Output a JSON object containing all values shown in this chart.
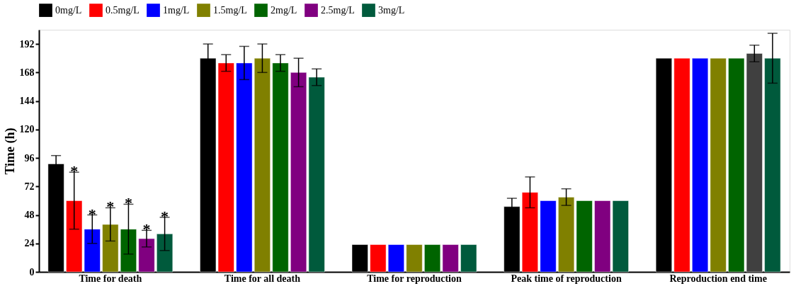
{
  "chart_data": {
    "type": "bar",
    "ylabel": "Time (h)",
    "categories": [
      "Time for death",
      "Time for all death",
      "Time for reproduction",
      "Peak time of reproduction",
      "Reproduction end time"
    ],
    "series": [
      {
        "name": "0mg/L",
        "color": "#000000",
        "values": [
          91,
          180,
          23,
          55,
          180
        ],
        "errors": [
          7,
          12,
          null,
          7,
          null
        ]
      },
      {
        "name": "0.5mg/L",
        "color": "#ff0000",
        "values": [
          60,
          176,
          23,
          67,
          180
        ],
        "errors": [
          24,
          7,
          null,
          13,
          null
        ]
      },
      {
        "name": "1mg/L",
        "color": "#0000ff",
        "values": [
          36,
          176,
          23,
          60,
          180
        ],
        "errors": [
          12,
          14,
          null,
          null,
          null
        ]
      },
      {
        "name": "1.5mg/L",
        "color": "#808000",
        "values": [
          40,
          180,
          23,
          63,
          180
        ],
        "errors": [
          14,
          12,
          null,
          7,
          null
        ]
      },
      {
        "name": "2mg/L",
        "color": "#006400",
        "values": [
          36,
          176,
          23,
          60,
          180
        ],
        "errors": [
          21,
          7,
          null,
          null,
          null
        ]
      },
      {
        "name": "2.5mg/L",
        "color": "#800080",
        "colors": [
          "#800080",
          "#800080",
          "#800080",
          "#800080",
          "#404040"
        ],
        "values": [
          28,
          168,
          23,
          60,
          184
        ],
        "errors": [
          7,
          12,
          null,
          null,
          7
        ]
      },
      {
        "name": "3mg/L",
        "color": "#005a3c",
        "values": [
          32,
          164,
          23,
          60,
          180
        ],
        "errors": [
          14,
          7,
          null,
          null,
          21
        ]
      }
    ],
    "ylim": [
      0,
      204
    ],
    "yticks": [
      0,
      24,
      48,
      72,
      96,
      120,
      144,
      168,
      192
    ],
    "grid": false,
    "legend": "top",
    "annotations": [
      "*",
      "*",
      "*",
      "*",
      "*",
      "*"
    ]
  }
}
